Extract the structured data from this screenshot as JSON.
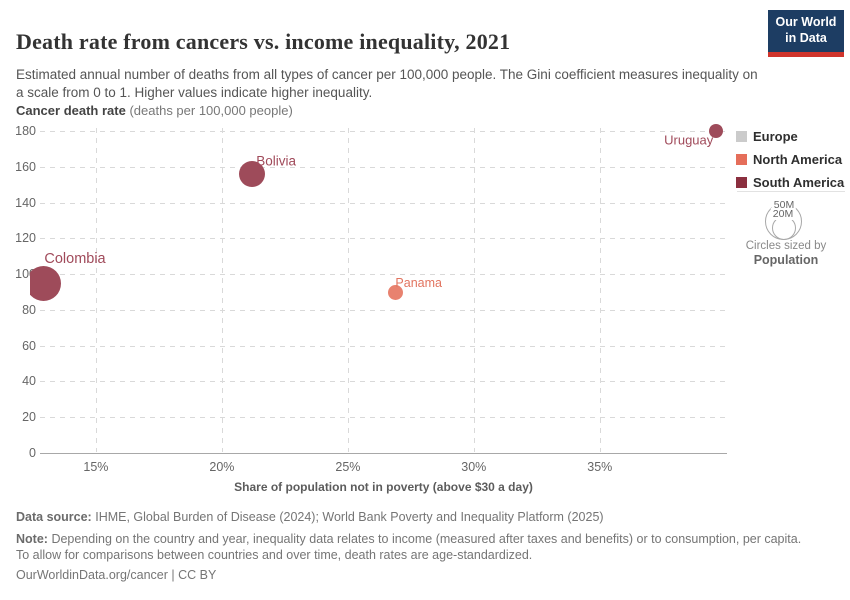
{
  "header": {
    "title": "Death rate from cancers vs. income inequality, 2021",
    "subtitle": "Estimated annual number of deaths from all types of cancer per 100,000 people. The Gini coefficient measures inequality on a scale from 0 to 1. Higher values indicate higher inequality."
  },
  "logo": {
    "line1": "Our World",
    "line2": "in Data",
    "bg_color": "#1d3d63",
    "accent_color": "#d0342c"
  },
  "chart_data": {
    "type": "scatter",
    "title": "Death rate from cancers vs. income inequality, 2021",
    "xlabel": "Share of population not in poverty (above $30 a day)",
    "ylabel": "Cancer death rate",
    "ylabel_unit": "(deaths per 100,000 people)",
    "x_ticks": {
      "values": [
        15,
        20,
        25,
        30,
        35
      ],
      "labels": [
        "15%",
        "20%",
        "25%",
        "30%",
        "35%"
      ]
    },
    "y_ticks": {
      "values": [
        0,
        20,
        40,
        60,
        80,
        100,
        120,
        140,
        160,
        180
      ]
    },
    "x_range": [
      12.78,
      40.05
    ],
    "y_range": [
      0,
      180
    ],
    "grid": true,
    "points": [
      {
        "name": "Colombia",
        "x": 12.9,
        "y": 95,
        "region": "South America",
        "radius_px": 17.5,
        "label_size": 14.5,
        "label_offset": [
          32,
          -24
        ]
      },
      {
        "name": "Bolivia",
        "x": 21.2,
        "y": 156,
        "region": "South America",
        "radius_px": 13,
        "label_size": 13.5,
        "label_offset": [
          24,
          -13
        ]
      },
      {
        "name": "Panama",
        "x": 26.9,
        "y": 90,
        "region": "North America",
        "radius_px": 7.5,
        "label_size": 12.5,
        "label_offset": [
          23,
          -9
        ]
      },
      {
        "name": "Uruguay",
        "x": 39.6,
        "y": 180,
        "region": "South America",
        "radius_px": 7,
        "label_size": 13,
        "label_offset": [
          -27,
          9
        ]
      }
    ],
    "legend": {
      "items": [
        {
          "label": "Europe",
          "color": "#cbcbcb"
        },
        {
          "label": "North America",
          "color": "#e56e5a"
        },
        {
          "label": "South America",
          "color": "#8b2f3f"
        }
      ]
    },
    "point_colors": {
      "North America": {
        "dot": "#e8826f",
        "label": "#e2745f"
      },
      "South America": {
        "dot": "#9e4b5a",
        "label": "#a04a5a"
      }
    },
    "size_legend": {
      "outer_label": "50M",
      "inner_label": "20M",
      "caption": "Circles sized by",
      "caption_bold": "Population"
    }
  },
  "footer": {
    "source_label": "Data source:",
    "source_text": "IHME, Global Burden of Disease (2024); World Bank Poverty and Inequality Platform (2025)",
    "note_label": "Note:",
    "note_text": "Depending on the country and year, inequality data relates to income (measured after taxes and benefits) or to consumption, per capita. To allow for comparisons between countries and over time, death rates are age-standardized.",
    "citation": "OurWorldinData.org/cancer | CC BY"
  }
}
